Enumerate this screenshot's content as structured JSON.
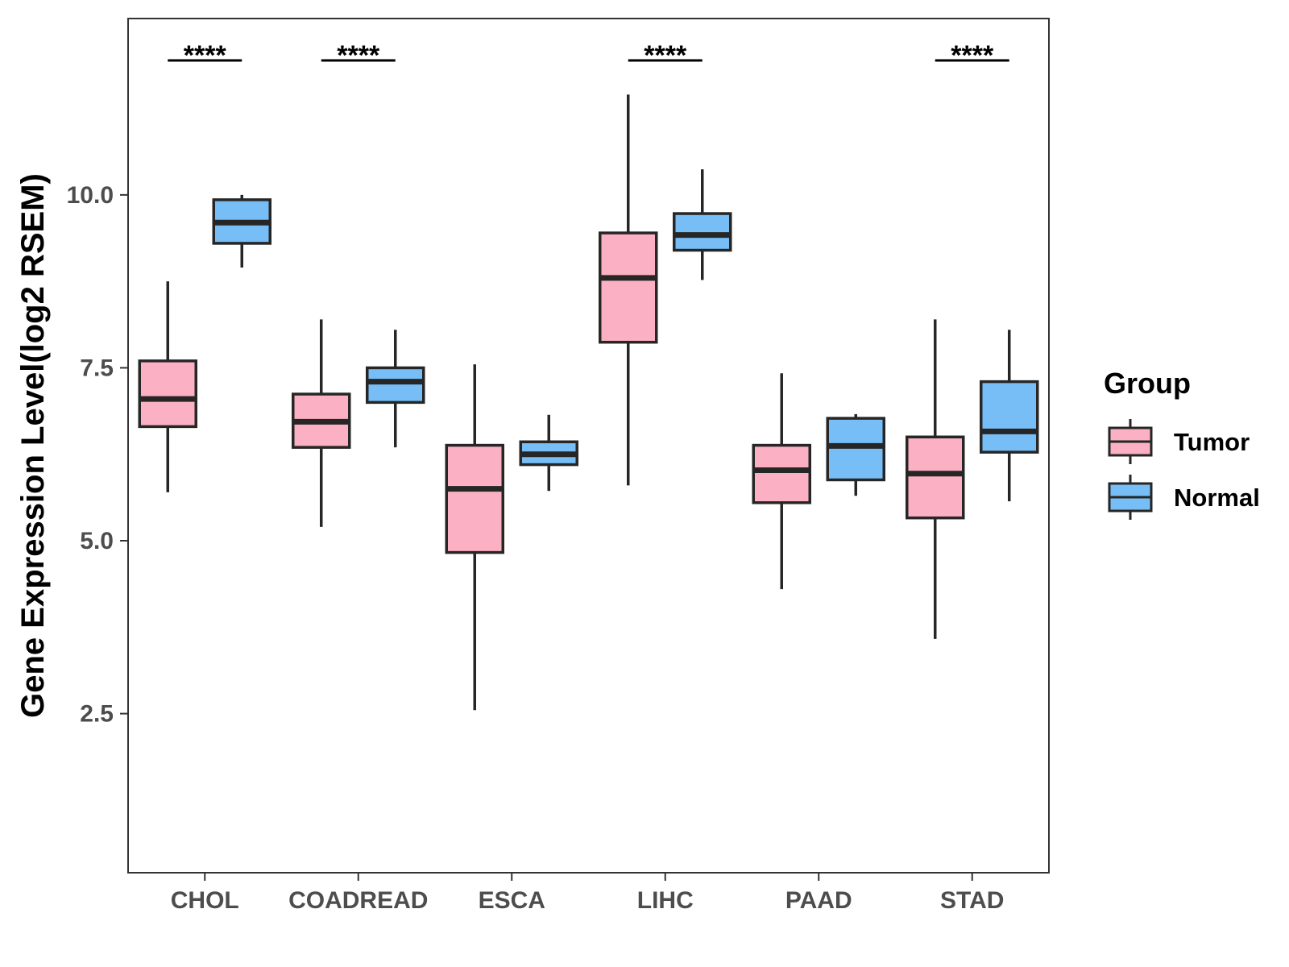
{
  "chart_data": {
    "type": "boxplot",
    "title": "",
    "xlabel": "",
    "ylabel": "Gene Expression Level(log2 RSEM)",
    "ylim": [
      0.2,
      12.55
    ],
    "yticks": [
      2.5,
      5.0,
      7.5,
      10.0
    ],
    "ytick_labels": [
      "2.5",
      "5.0",
      "7.5",
      "10.0"
    ],
    "grid": false,
    "legend": {
      "title": "Group",
      "placement": "right"
    },
    "categories": [
      "CHOL",
      "COADREAD",
      "ESCA",
      "LIHC",
      "PAAD",
      "STAD"
    ],
    "series": [
      {
        "name": "Tumor",
        "color": "#FBB1C3",
        "boxes": [
          {
            "min": 5.7,
            "q1": 6.65,
            "median": 7.05,
            "q3": 7.6,
            "max": 8.75
          },
          {
            "min": 5.2,
            "q1": 6.35,
            "median": 6.72,
            "q3": 7.12,
            "max": 8.2
          },
          {
            "min": 2.55,
            "q1": 4.83,
            "median": 5.75,
            "q3": 6.38,
            "max": 7.55
          },
          {
            "min": 5.8,
            "q1": 7.87,
            "median": 8.8,
            "q3": 9.45,
            "max": 11.45
          },
          {
            "min": 4.3,
            "q1": 5.55,
            "median": 6.02,
            "q3": 6.38,
            "max": 7.42
          },
          {
            "min": 3.58,
            "q1": 5.33,
            "median": 5.97,
            "q3": 6.5,
            "max": 8.2
          }
        ]
      },
      {
        "name": "Normal",
        "color": "#77BEF6",
        "boxes": [
          {
            "min": 8.95,
            "q1": 9.3,
            "median": 9.6,
            "q3": 9.93,
            "max": 10.0
          },
          {
            "min": 6.35,
            "q1": 7.0,
            "median": 7.3,
            "q3": 7.5,
            "max": 8.05
          },
          {
            "min": 5.72,
            "q1": 6.1,
            "median": 6.25,
            "q3": 6.43,
            "max": 6.82
          },
          {
            "min": 8.77,
            "q1": 9.2,
            "median": 9.42,
            "q3": 9.73,
            "max": 10.37
          },
          {
            "min": 5.65,
            "q1": 5.88,
            "median": 6.37,
            "q3": 6.77,
            "max": 6.83
          },
          {
            "min": 5.57,
            "q1": 6.28,
            "median": 6.58,
            "q3": 7.3,
            "max": 8.05
          }
        ]
      }
    ],
    "significance": [
      {
        "category": "CHOL",
        "label": "****"
      },
      {
        "category": "COADREAD",
        "label": "****"
      },
      {
        "category": "LIHC",
        "label": "****"
      },
      {
        "category": "STAD",
        "label": "****"
      }
    ],
    "outline_color": "#262626"
  }
}
